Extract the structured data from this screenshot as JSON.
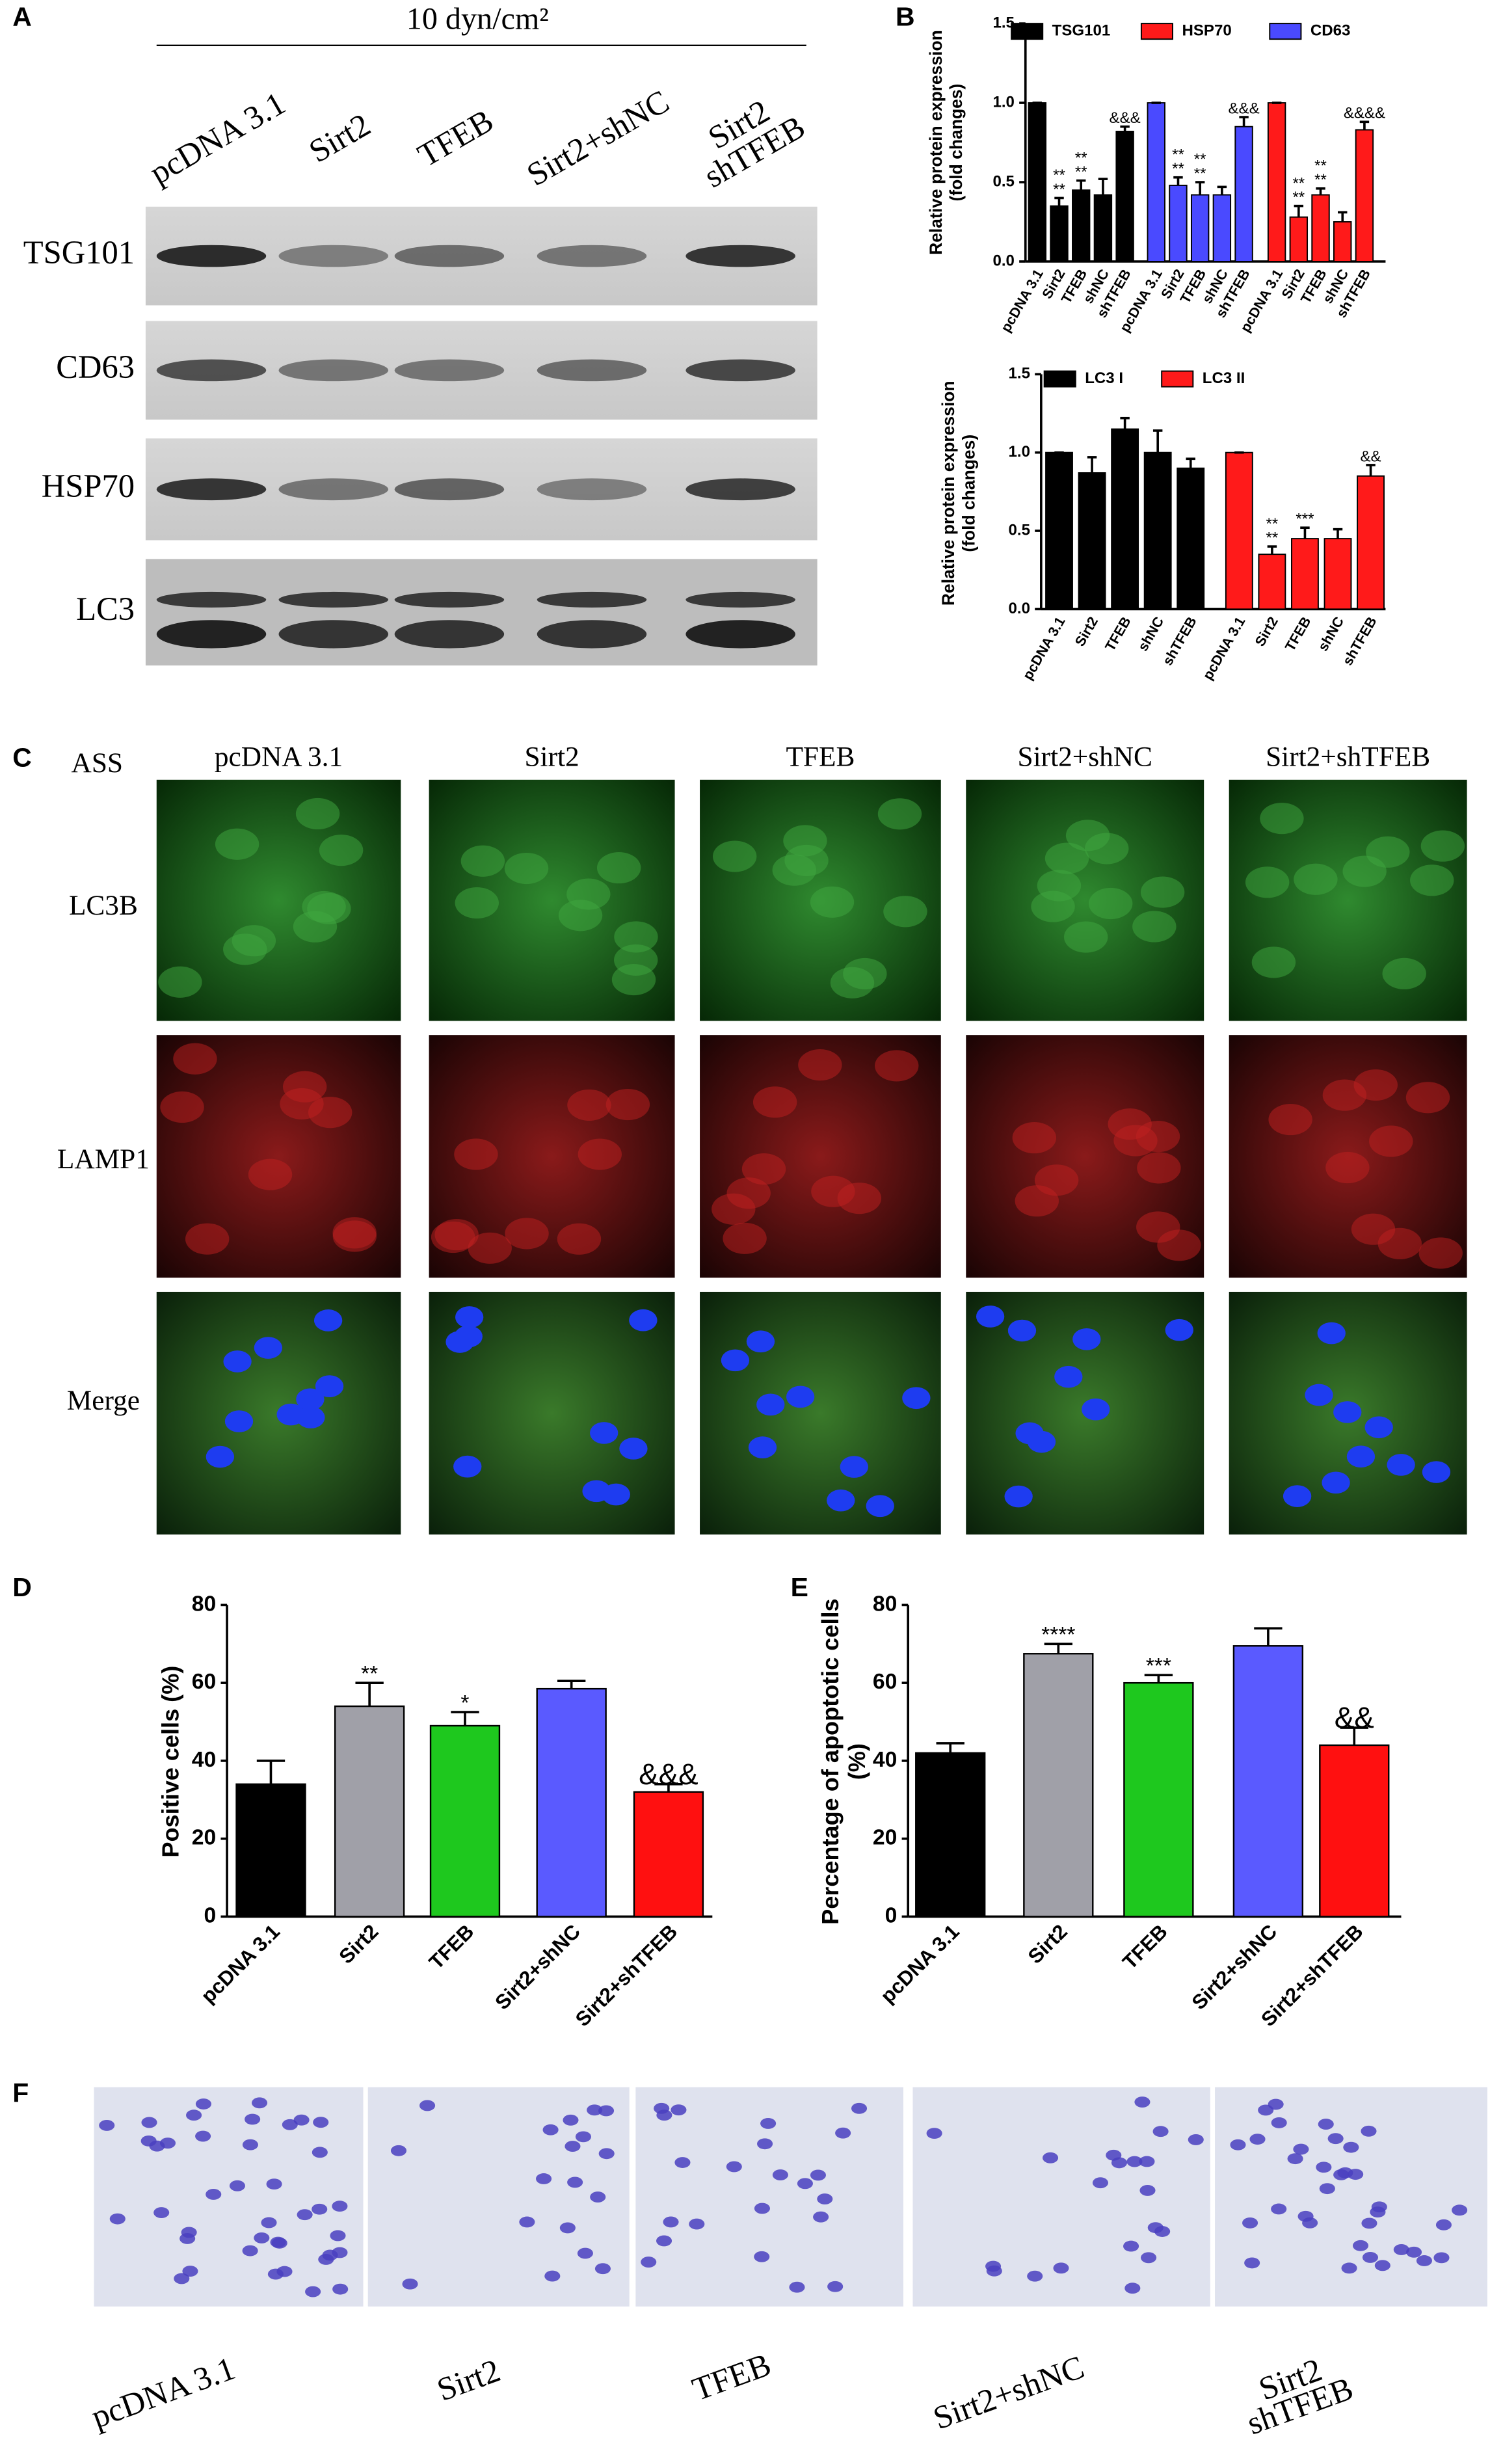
{
  "panel_labels": [
    "A",
    "B",
    "C",
    "D",
    "E",
    "F"
  ],
  "blot": {
    "condition": "10 dyn/cm²",
    "lanes": [
      "pcDNA 3.1",
      "Sirt2",
      "TFEB",
      "Sirt2+shNC",
      [
        "Sirt2",
        "shTFEB"
      ]
    ],
    "proteins": [
      "TSG101",
      "CD63",
      "HSP70",
      "LC3"
    ]
  },
  "imaging": {
    "stain": "ASS",
    "columns": [
      "pcDNA 3.1",
      "Sirt2",
      "TFEB",
      "Sirt2+shNC",
      "Sirt2+shTFEB"
    ],
    "rows": [
      "LC3B",
      "LAMP1",
      "Merge"
    ]
  },
  "migration": {
    "labels": [
      "pcDNA 3.1",
      "Sirt2",
      "TFEB",
      "Sirt2+shNC",
      [
        "Sirt2",
        "shTFEB"
      ]
    ]
  },
  "chart_data": [
    {
      "type": "grouped-bar",
      "ylabel": [
        "Relative protein expression",
        "(fold changes)"
      ],
      "categories": [
        "pcDNA 3.1",
        "Sirt2",
        "TFEB",
        "shNC",
        "shTFEB"
      ],
      "ylim": [
        0,
        1.5
      ],
      "yticks": [
        {
          "value": 0,
          "label": "0.0"
        },
        {
          "value": 0.5,
          "label": "0.5"
        },
        {
          "value": 1,
          "label": "1.0"
        },
        {
          "value": 1.5,
          "label": "1.5"
        }
      ],
      "series": [
        {
          "name": "TSG101",
          "color": "#000000",
          "values": [
            1.0,
            0.35,
            0.45,
            0.42,
            0.82
          ],
          "errors": [
            0,
            0.05,
            0.06,
            0.1,
            0.03
          ],
          "annotations": [
            null,
            [
              "**",
              "**"
            ],
            [
              "**",
              "**"
            ],
            null,
            [
              "&&&"
            ]
          ]
        },
        {
          "name": "CD63",
          "color": "#4a4aff",
          "values": [
            1.0,
            0.48,
            0.42,
            0.42,
            0.85
          ],
          "errors": [
            0,
            0.05,
            0.08,
            0.05,
            0.06
          ],
          "annotations": [
            null,
            [
              "**",
              "**"
            ],
            [
              "**",
              "**"
            ],
            null,
            [
              "&&&"
            ]
          ]
        },
        {
          "name": "HSP70",
          "color": "#ff1a1a",
          "values": [
            1.0,
            0.28,
            0.42,
            0.25,
            0.83
          ],
          "errors": [
            0,
            0.07,
            0.04,
            0.06,
            0.05
          ],
          "annotations": [
            null,
            [
              "**",
              "**"
            ],
            [
              "**",
              "**"
            ],
            null,
            [
              "&&&&"
            ]
          ]
        }
      ]
    },
    {
      "type": "grouped-bar",
      "ylabel": [
        "Relative protein expression",
        "(fold changes)"
      ],
      "categories": [
        "pcDNA 3.1",
        "Sirt2",
        "TFEB",
        "shNC",
        "shTFEB"
      ],
      "ylim": [
        0,
        1.5
      ],
      "yticks": [
        {
          "value": 0,
          "label": "0.0"
        },
        {
          "value": 0.5,
          "label": "0.5"
        },
        {
          "value": 1,
          "label": "1.0"
        },
        {
          "value": 1.5,
          "label": "1.5"
        }
      ],
      "series": [
        {
          "name": "LC3 I",
          "color": "#000000",
          "values": [
            1.0,
            0.87,
            1.15,
            1.0,
            0.9
          ],
          "errors": [
            0,
            0.1,
            0.07,
            0.14,
            0.06
          ],
          "annotations": [
            null,
            null,
            null,
            null,
            null
          ]
        },
        {
          "name": "LC3 II",
          "color": "#ff1a1a",
          "values": [
            1.0,
            0.35,
            0.45,
            0.45,
            0.85
          ],
          "errors": [
            0,
            0.05,
            0.07,
            0.06,
            0.07
          ],
          "annotations": [
            null,
            [
              "**",
              "**"
            ],
            [
              "***"
            ],
            null,
            [
              "&&"
            ]
          ]
        }
      ]
    },
    {
      "type": "bar",
      "ylabel": [
        "Positive cells (%)"
      ],
      "categories": [
        "pcDNA 3.1",
        "Sirt2",
        "TFEB",
        "Sirt2+shNC",
        "Sirt2+shTFEB"
      ],
      "values": [
        34,
        54,
        49,
        58.5,
        32
      ],
      "errors": [
        6,
        6,
        3.5,
        2,
        2
      ],
      "colors": [
        "#000000",
        "#a0a0a8",
        "#1ec81e",
        "#5a5aff",
        "#ff1010"
      ],
      "annotations": [
        null,
        "**",
        "*",
        null,
        "&&&"
      ],
      "ylim": [
        0,
        80
      ],
      "yticks": [
        0,
        20,
        40,
        60,
        80
      ]
    },
    {
      "type": "bar",
      "ylabel": [
        "Percentage of apoptotic cells",
        "(%)"
      ],
      "categories": [
        "pcDNA 3.1",
        "Sirt2",
        "TFEB",
        "Sirt2+shNC",
        "Sirt2+shTFEB"
      ],
      "values": [
        42,
        67.5,
        60,
        69.5,
        44
      ],
      "errors": [
        2.5,
        2.5,
        2,
        4.5,
        4.5
      ],
      "colors": [
        "#000000",
        "#a0a0a8",
        "#1ec81e",
        "#5a5aff",
        "#ff1010"
      ],
      "annotations": [
        null,
        "****",
        "***",
        null,
        "&&"
      ],
      "ylim": [
        0,
        80
      ],
      "yticks": [
        0,
        20,
        40,
        60,
        80
      ]
    }
  ]
}
